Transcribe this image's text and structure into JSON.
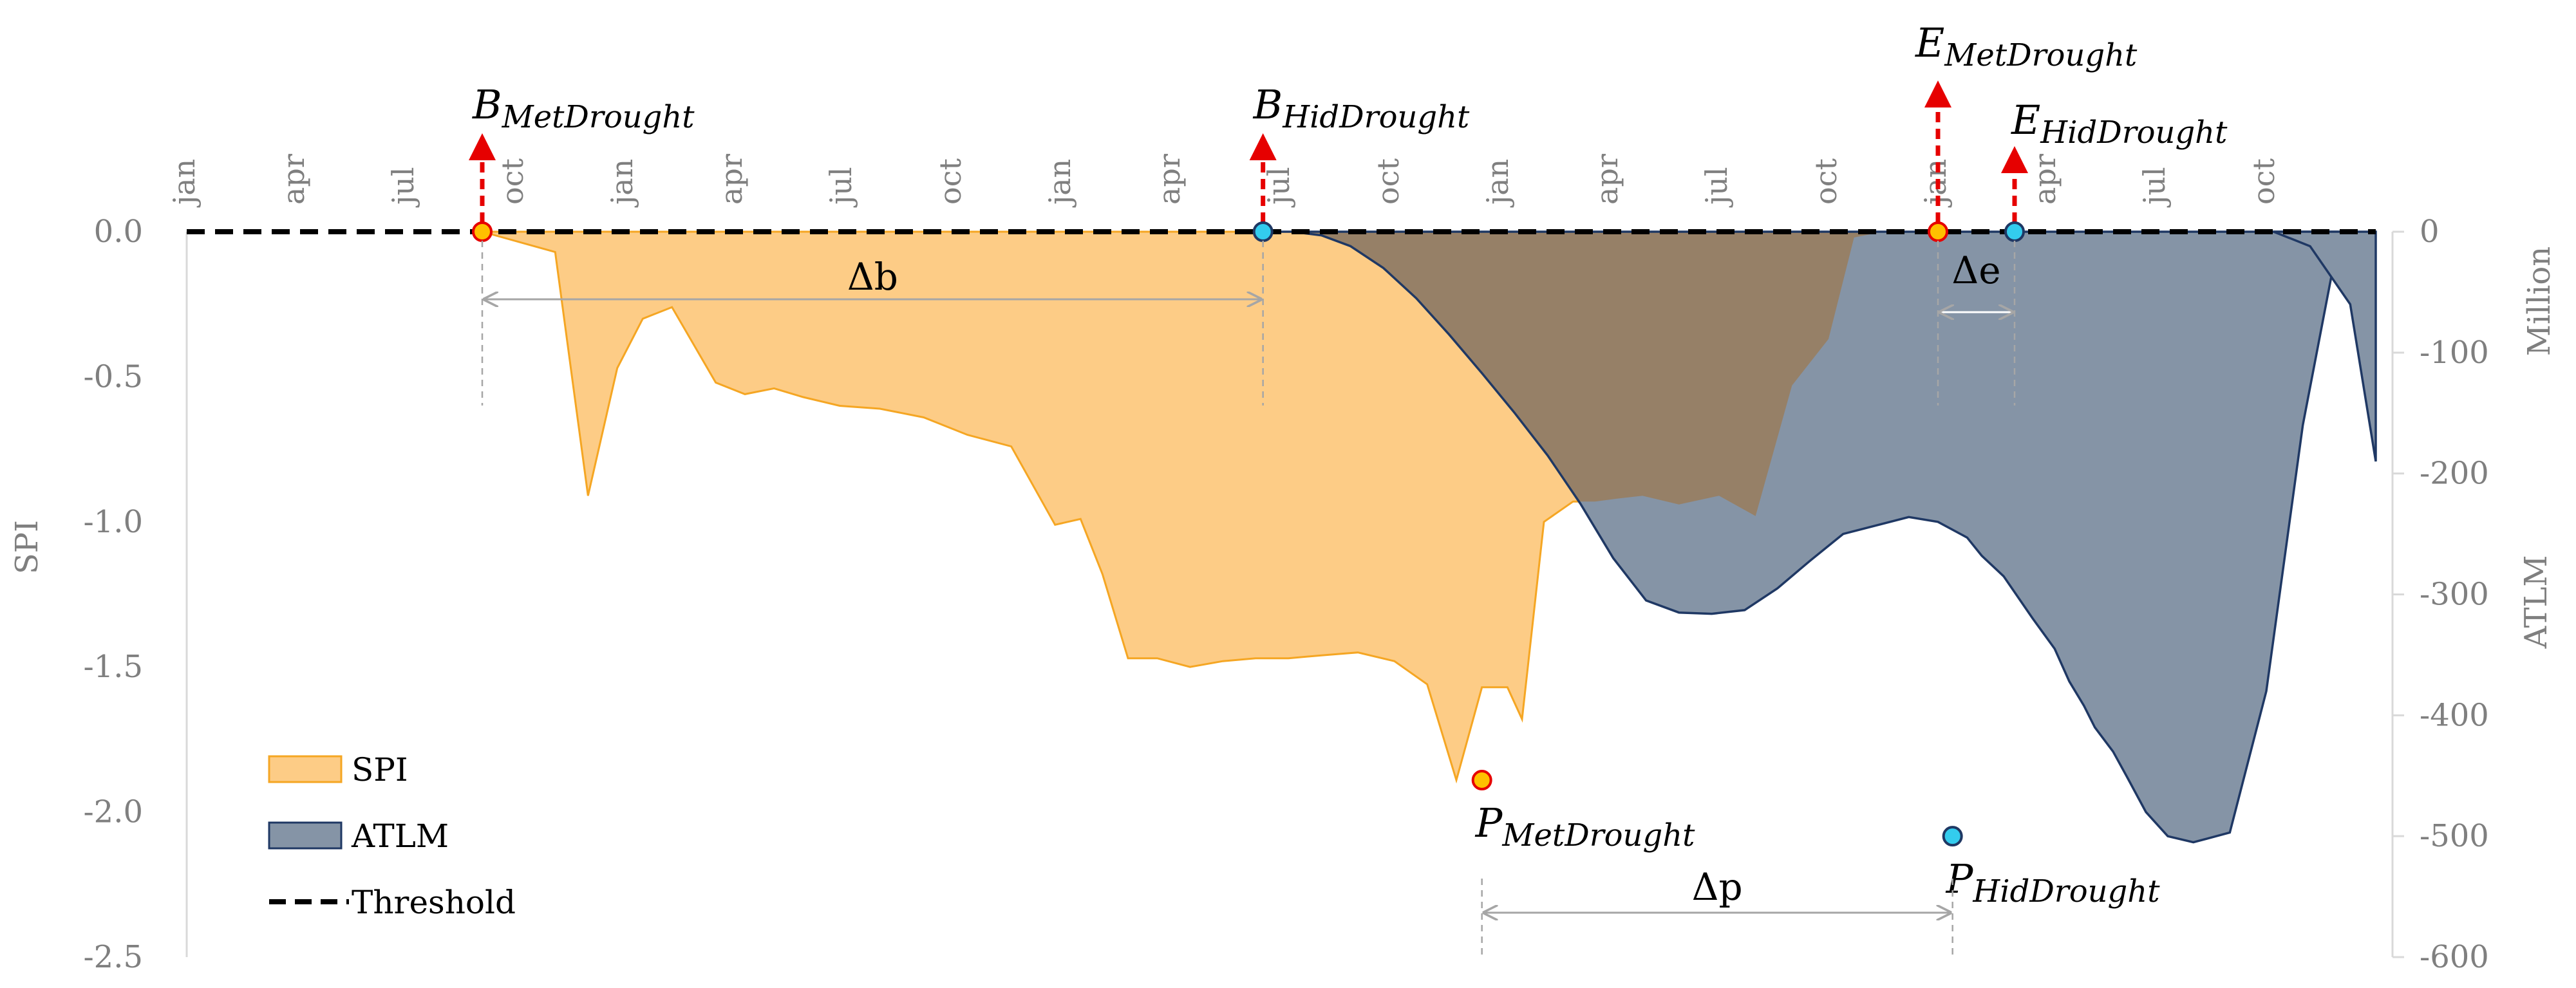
{
  "chart_data": {
    "type": "area",
    "ylabel_left": "SPI",
    "ylabel_right": "ATLM",
    "right_unit": "Million",
    "y_left_range": [
      -2.5,
      0.0
    ],
    "y_left_ticks": [
      "0.0",
      "-0.5",
      "-1.0",
      "-1.5",
      "-2.0",
      "-2.5"
    ],
    "y_right_range": [
      -600,
      0
    ],
    "y_right_ticks": [
      "0",
      "-100",
      "-200",
      "-300",
      "-400",
      "-500",
      "-600"
    ],
    "x_month_labels": [
      "jan",
      "apr",
      "jul",
      "oct",
      "jan",
      "apr",
      "jul",
      "oct",
      "jan",
      "apr",
      "jul",
      "oct",
      "jan",
      "apr",
      "jul",
      "oct",
      "jan",
      "apr",
      "jul",
      "oct"
    ],
    "x_month_index": [
      0,
      3,
      6,
      9,
      12,
      15,
      18,
      21,
      24,
      27,
      30,
      33,
      36,
      39,
      42,
      45,
      48,
      51,
      54,
      57
    ],
    "threshold": 0.0,
    "series": [
      {
        "name": "SPI",
        "axis": "left",
        "color": "#FDCC86",
        "edge": "#F5A623",
        "x": [
          8.1,
          10.1,
          11.0,
          11.8,
          12.5,
          13.3,
          14.5,
          15.3,
          16.1,
          16.9,
          17.9,
          19.0,
          20.2,
          21.4,
          22.6,
          23.8,
          24.5,
          25.1,
          25.8,
          26.6,
          27.5,
          28.4,
          29.3,
          30.2,
          31.1,
          32.1,
          33.1,
          34.0,
          34.8,
          35.5,
          36.2,
          36.6,
          37.2,
          38.0,
          38.6,
          39.2,
          39.9,
          40.9,
          42.0,
          43.0,
          44.0,
          45.0,
          45.7,
          46.5,
          47.3,
          48.1,
          48.4
        ],
        "y": [
          0.0,
          -0.07,
          -0.91,
          -0.47,
          -0.3,
          -0.26,
          -0.52,
          -0.56,
          -0.54,
          -0.57,
          -0.6,
          -0.61,
          -0.64,
          -0.7,
          -0.74,
          -1.01,
          -0.99,
          -1.18,
          -1.47,
          -1.47,
          -1.5,
          -1.48,
          -1.47,
          -1.47,
          -1.46,
          -1.45,
          -1.48,
          -1.56,
          -1.89,
          -1.57,
          -1.57,
          -1.68,
          -1.0,
          -0.93,
          -0.93,
          -0.92,
          -0.91,
          -0.94,
          -0.91,
          -0.98,
          -0.53,
          -0.37,
          -0.02,
          0.0,
          0.0,
          0.0,
          0.0
        ]
      },
      {
        "name": "ATLM",
        "axis": "right",
        "color": "#8594A6",
        "edge": "#1F3864",
        "x": [
          29.5,
          30.3,
          31.1,
          31.9,
          32.8,
          33.7,
          34.6,
          35.5,
          36.4,
          37.3,
          38.2,
          39.1,
          40.0,
          40.9,
          41.8,
          42.7,
          43.6,
          44.5,
          45.4,
          46.3,
          47.2,
          48.0,
          48.8,
          49.2,
          49.8,
          50.6,
          51.2,
          51.6,
          52.0,
          52.3,
          52.8,
          53.2,
          53.7,
          54.3,
          55.0,
          56.0,
          57.0,
          58.0,
          59.0,
          59.5
        ],
        "y": [
          0,
          0,
          -3,
          -12,
          -30,
          -55,
          -85,
          -117,
          -150,
          -185,
          -225,
          -270,
          -305,
          -315,
          -316,
          -313,
          -295,
          -272,
          -250,
          -243,
          -236,
          -240,
          -253,
          -268,
          -285,
          -320,
          -345,
          -372,
          -392,
          -410,
          -430,
          -452,
          -480,
          -500,
          -505,
          -497,
          -380,
          -160,
          -3,
          0
        ]
      }
    ],
    "events": [
      {
        "label": "B",
        "sub": "MetDrought",
        "x": 8.1,
        "type": "begin",
        "marker": "yellow"
      },
      {
        "label": "B",
        "sub": "HidDrought",
        "x": 29.5,
        "type": "begin",
        "marker": "cyan"
      },
      {
        "label": "E",
        "sub": "MetDrought",
        "x": 48.0,
        "type": "end",
        "marker": "yellow"
      },
      {
        "label": "E",
        "sub": "HidDrought",
        "x": 50.1,
        "type": "end",
        "marker": "cyan"
      },
      {
        "label": "P",
        "sub": "MetDrought",
        "x": 35.5,
        "y_spi": -1.89,
        "type": "peak",
        "marker": "yellow"
      },
      {
        "label": "P",
        "sub": "HidDrought",
        "x": 48.4,
        "y_atlm": -500,
        "type": "peak",
        "marker": "cyan"
      }
    ],
    "spans": [
      {
        "label": "Δb",
        "from": 8.1,
        "to": 29.5
      },
      {
        "label": "Δe",
        "from": 48.0,
        "to": 50.1
      },
      {
        "label": "Δp",
        "from": 35.5,
        "to": 48.4
      }
    ],
    "legend": {
      "placement": "bottom-left",
      "items": [
        {
          "label": "SPI",
          "kind": "swatch",
          "color": "#FDCC86",
          "edge": "#F5A623"
        },
        {
          "label": "ATLM",
          "kind": "swatch",
          "color": "#8594A6",
          "edge": "#1F3864"
        },
        {
          "label": "Threshold",
          "kind": "dash",
          "color": "#000000"
        }
      ]
    },
    "colors": {
      "overlap": "#968067",
      "arrow": "#E60000",
      "marker_yellow": "#FFC000",
      "marker_yellow_edge": "#E60000",
      "marker_cyan": "#33CCEE",
      "marker_cyan_edge": "#1F3864",
      "guide": "#A6A6A6"
    }
  }
}
